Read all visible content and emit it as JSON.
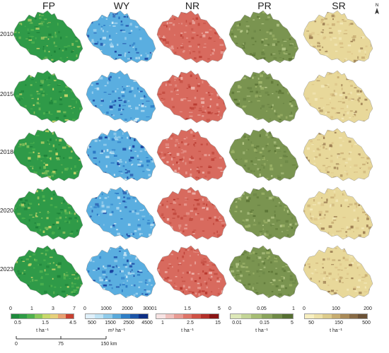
{
  "columns": [
    {
      "key": "FP",
      "label": "FP"
    },
    {
      "key": "WY",
      "label": "WY"
    },
    {
      "key": "NR",
      "label": "NR"
    },
    {
      "key": "PR",
      "label": "PR"
    },
    {
      "key": "SR",
      "label": "SR"
    }
  ],
  "years": [
    "2010",
    "2015",
    "2018",
    "2020",
    "2023"
  ],
  "legends": [
    {
      "key": "FP",
      "colors": [
        "#1e8a3c",
        "#2e9b45",
        "#4fb04d",
        "#8cc85a",
        "#c8d86a",
        "#e6d07a",
        "#e8a070",
        "#c84030"
      ],
      "ticks_top": [
        "0",
        "1",
        "3",
        "7"
      ],
      "ticks_bottom": [
        "0.5",
        "1.5",
        "4.5"
      ],
      "unit": "t ha⁻¹"
    },
    {
      "key": "WY",
      "colors": [
        "#dff0fa",
        "#bfe3f5",
        "#8fcbea",
        "#5aaadb",
        "#2f7fc6",
        "#1b55a8",
        "#0d2f85"
      ],
      "ticks_top": [
        "0",
        "1000",
        "2000",
        "3000"
      ],
      "ticks_bottom": [
        "500",
        "1500",
        "2500",
        "4500"
      ],
      "unit": "m³ ha⁻¹"
    },
    {
      "key": "NR",
      "colors": [
        "#f7e3e3",
        "#f0c0bc",
        "#e89a92",
        "#de7468",
        "#cf5246",
        "#b3302a",
        "#8a1414"
      ],
      "ticks_top": [
        "1",
        "1.5",
        "5"
      ],
      "ticks_bottom": [
        "1",
        "2.5",
        "15"
      ],
      "unit": "t ha⁻¹"
    },
    {
      "key": "PR",
      "colors": [
        "#dde8b8",
        "#c3d596",
        "#a6bd74",
        "#8aa45c",
        "#6f8a46",
        "#566f32"
      ],
      "ticks_top": [
        "0",
        "0.05",
        "1"
      ],
      "ticks_bottom": [
        "0.01",
        "0.15",
        "5"
      ],
      "unit": "t ha⁻¹"
    },
    {
      "key": "SR",
      "colors": [
        "#f7efc0",
        "#ede0a6",
        "#dccb8a",
        "#c7ad70",
        "#a98a58",
        "#876a45",
        "#6b5236"
      ],
      "ticks_top": [
        "0",
        "100",
        "200"
      ],
      "ticks_bottom": [
        "50",
        "150",
        "500"
      ],
      "unit": "t ha⁻¹"
    }
  ],
  "scalebar": {
    "ticks": [
      "0",
      "75",
      "150 km"
    ]
  },
  "north": {
    "label": "N"
  },
  "palettes": {
    "FP": {
      "base": "#2f9a48",
      "accents": [
        "#4cb04f",
        "#7cc05a",
        "#c8d46a",
        "#1c8038"
      ]
    },
    "WY": {
      "base": "#5aaee0",
      "accents": [
        "#a7d6f0",
        "#2a78c4",
        "#173f9e",
        "#cfeaf7"
      ]
    },
    "NR": {
      "base": "#d86a5e",
      "accents": [
        "#e89a90",
        "#b93a30",
        "#f0b8b0",
        "#c44e42"
      ]
    },
    "PR": {
      "base": "#7a9450",
      "accents": [
        "#9fb46a",
        "#5c7536",
        "#b6c888",
        "#6a8444"
      ]
    },
    "SR": {
      "base": "#e8d89a",
      "accents": [
        "#c8ad74",
        "#f3e8b8",
        "#9c7d52",
        "#dcc488"
      ]
    }
  }
}
